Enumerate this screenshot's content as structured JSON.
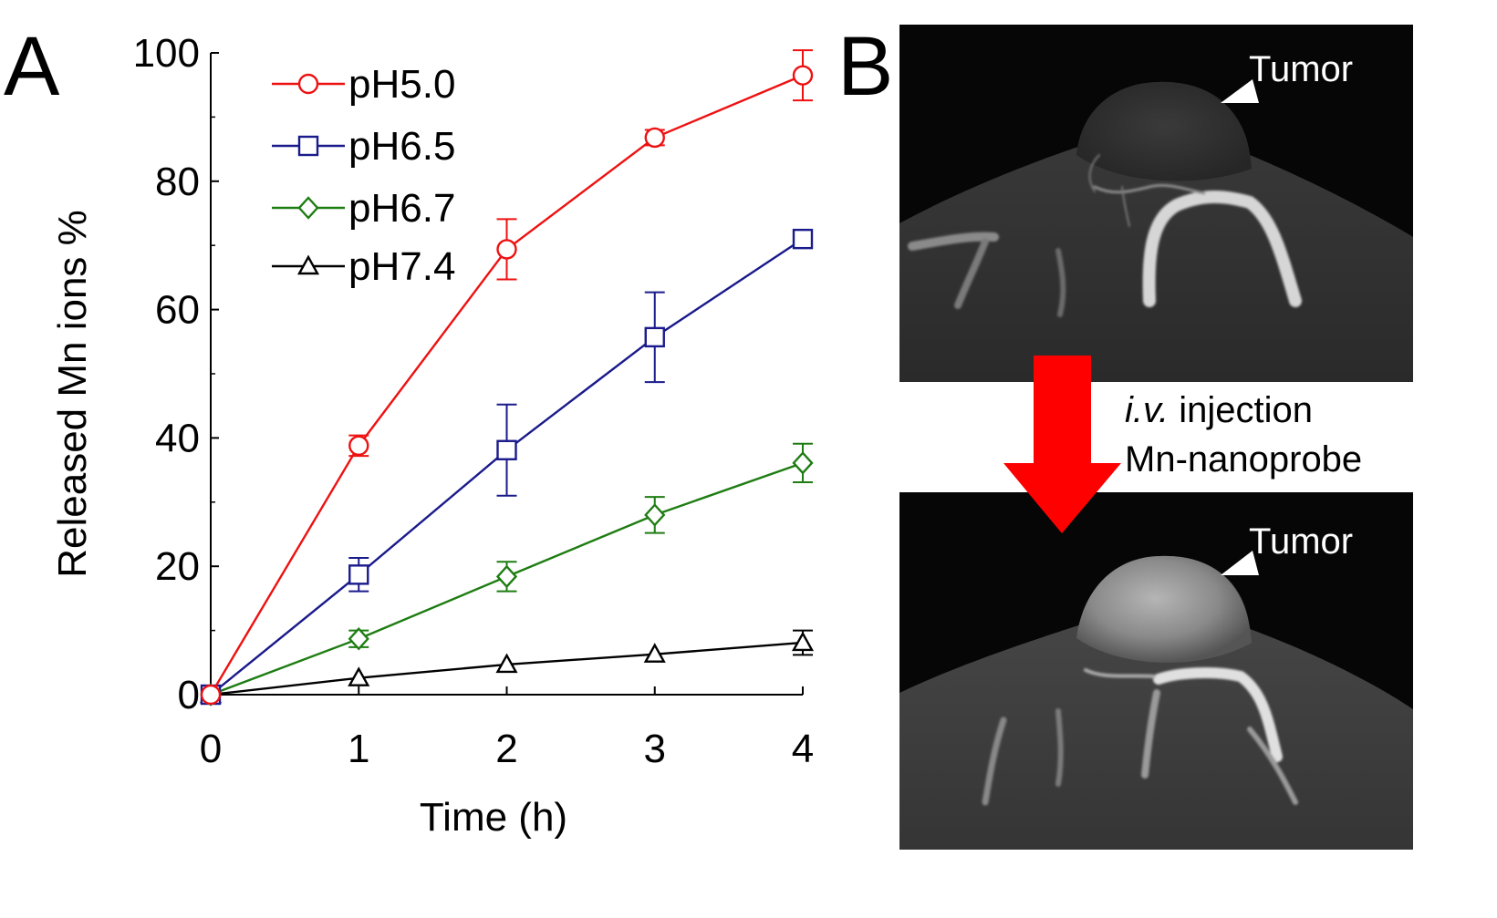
{
  "panel_labels": {
    "a": "A",
    "b": "B"
  },
  "chart_data": {
    "type": "line",
    "title": "",
    "xlabel": "Time (h)",
    "ylabel": "Released Mn ions %",
    "xlim": [
      0,
      4
    ],
    "ylim": [
      0,
      100
    ],
    "xticks": [
      0,
      1,
      2,
      3,
      4
    ],
    "yticks": [
      0,
      20,
      40,
      60,
      80,
      100
    ],
    "x": [
      0,
      1,
      2,
      3,
      4
    ],
    "legend_position": "top-left",
    "series": [
      {
        "name": "pH5.0",
        "color": "#ee1111",
        "marker": "circle",
        "values": [
          0,
          38.8,
          69.4,
          86.8,
          96.5
        ],
        "errors": [
          0,
          1.6,
          4.7,
          1.2,
          3.9
        ]
      },
      {
        "name": "pH6.5",
        "color": "#1a1a8c",
        "marker": "square",
        "values": [
          0,
          18.7,
          38.1,
          55.7,
          71.0
        ],
        "errors": [
          0,
          2.6,
          7.1,
          7.0,
          1.3
        ]
      },
      {
        "name": "pH6.7",
        "color": "#1e7d12",
        "marker": "diamond",
        "values": [
          0,
          8.7,
          18.4,
          28.0,
          36.1
        ],
        "errors": [
          0,
          1.3,
          2.3,
          2.8,
          3.0
        ]
      },
      {
        "name": "pH7.4",
        "color": "#000000",
        "marker": "triangle",
        "values": [
          0,
          2.6,
          4.7,
          6.3,
          8.1
        ],
        "errors": [
          0,
          0,
          0,
          0,
          1.9
        ]
      }
    ]
  },
  "imaging": {
    "annotation_top": "Tumor",
    "annotation_bottom": "Tumor",
    "caption_line1_italic": "i.v.",
    "caption_line1_rest": " injection",
    "caption_line2": "Mn-nanoprobe",
    "arrow_color": "#ff0000"
  }
}
